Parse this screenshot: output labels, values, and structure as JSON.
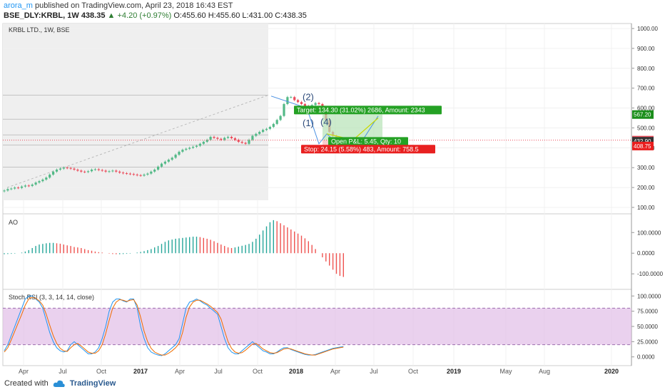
{
  "header": {
    "author": "arora_m",
    "published_text": "published on TradingView.com, April 23, 2018 16:43 EST",
    "symbol": "BSE_DLY:KRBL, 1W",
    "last": "438.35",
    "change": "▲ +4.20 (+0.97%)",
    "ohlc": "O:455.60 H:455.60 L:431.00 C:438.35"
  },
  "footer": {
    "created_with": "Created with",
    "brand": "TradingView"
  },
  "colors": {
    "up": "#53b987",
    "down": "#eb4d5c",
    "ao_up": "#26a69a",
    "ao_down": "#ef5350",
    "k": "#2196f3",
    "d": "#ef6c00",
    "band": "#e1bee7"
  },
  "chart_data": [
    {
      "type": "candlestick",
      "title": "KRBL LTD., 1W, BSE",
      "y_ticks": [
        "1000.00",
        "900.00",
        "800.00",
        "700.00",
        "600.00",
        "500.00",
        "400.00",
        "300.00",
        "200.00",
        "100.00"
      ],
      "ylim": [
        100,
        1000
      ],
      "x_tick_labels": [
        "Apr",
        "Jul",
        "Oct",
        "2017",
        "Apr",
        "Jul",
        "Oct",
        "2018",
        "Apr",
        "Jul",
        "Oct",
        "2019",
        "May",
        "Aug",
        "2020"
      ],
      "close_approx": [
        185,
        192,
        195,
        200,
        198,
        205,
        210,
        208,
        215,
        225,
        232,
        240,
        250,
        265,
        280,
        290,
        295,
        300,
        298,
        295,
        290,
        285,
        280,
        278,
        282,
        290,
        292,
        288,
        285,
        280,
        282,
        285,
        280,
        275,
        272,
        270,
        268,
        265,
        262,
        260,
        265,
        270,
        280,
        290,
        305,
        320,
        330,
        340,
        350,
        365,
        380,
        390,
        395,
        400,
        405,
        410,
        420,
        430,
        440,
        455,
        450,
        445,
        440,
        450,
        455,
        448,
        440,
        430,
        425,
        420,
        440,
        460,
        470,
        480,
        490,
        495,
        505,
        520,
        540,
        560,
        620,
        655,
        655,
        640,
        630,
        620,
        610,
        605,
        615,
        625,
        620,
        600,
        540,
        480,
        460,
        450,
        445,
        438
      ],
      "horizontal_levels": [
        {
          "value": 567.2,
          "label": "567.20",
          "color": "#1b8e1b"
        },
        {
          "value": 438.35,
          "label": "438.35",
          "color": "#eb4d5c"
        },
        {
          "value": 432.9,
          "label": "432.90",
          "color": "#333333"
        },
        {
          "value": 408.75,
          "label": "408.75",
          "color": "#e91e1e"
        }
      ],
      "annotations": {
        "wave_labels": [
          "(1)",
          "(2)",
          "(4)"
        ],
        "target": "Target: 134.30 (31.02%) 2686, Amount: 2343",
        "open": "Open P&L: 5.45, Qty: 10",
        "stop": "Stop: 24.15 (5.58%) 483, Amount: 758.5"
      }
    },
    {
      "type": "bar",
      "title": "AO",
      "y_ticks": [
        "100.0000",
        "0.0000",
        "-100.0000"
      ],
      "ylim": [
        -120,
        170
      ],
      "values_approx": [
        -5,
        -4,
        -3,
        -2,
        0,
        3,
        8,
        15,
        25,
        35,
        42,
        45,
        48,
        50,
        50,
        48,
        46,
        42,
        38,
        35,
        30,
        28,
        25,
        20,
        15,
        12,
        8,
        5,
        3,
        0,
        -2,
        -4,
        -5,
        -5,
        -4,
        -3,
        -2,
        0,
        3,
        6,
        10,
        15,
        20,
        28,
        35,
        45,
        55,
        62,
        66,
        70,
        72,
        74,
        76,
        78,
        80,
        80,
        78,
        74,
        70,
        65,
        58,
        50,
        42,
        35,
        28,
        25,
        28,
        32,
        36,
        40,
        45,
        55,
        70,
        90,
        110,
        130,
        150,
        160,
        155,
        145,
        135,
        125,
        115,
        105,
        95,
        85,
        72,
        58,
        40,
        20,
        0,
        -20,
        -40,
        -60,
        -80,
        -100,
        -110,
        -115
      ]
    },
    {
      "type": "line",
      "title": "Stoch RSI (3, 3, 14, 14, close)",
      "y_ticks": [
        "100.0000",
        "75.0000",
        "50.0000",
        "25.0000",
        "0.0000"
      ],
      "ylim": [
        -5,
        105
      ],
      "band": [
        20,
        80
      ],
      "series": [
        {
          "name": "K",
          "values_approx": [
            10,
            20,
            35,
            50,
            65,
            80,
            95,
            100,
            100,
            95,
            90,
            80,
            60,
            40,
            25,
            15,
            10,
            8,
            10,
            20,
            25,
            20,
            15,
            10,
            5,
            5,
            8,
            15,
            30,
            50,
            75,
            90,
            95,
            95,
            92,
            90,
            95,
            95,
            80,
            50,
            30,
            15,
            8,
            5,
            3,
            2,
            5,
            10,
            15,
            20,
            30,
            55,
            80,
            90,
            92,
            95,
            92,
            88,
            85,
            80,
            75,
            70,
            50,
            30,
            15,
            8,
            5,
            5,
            10,
            15,
            20,
            25,
            20,
            15,
            10,
            8,
            5,
            5,
            8,
            12,
            15,
            15,
            12,
            10,
            8,
            6,
            4,
            3,
            3,
            4,
            6,
            8,
            10,
            12,
            14,
            15,
            16,
            17
          ]
        },
        {
          "name": "D",
          "values_approx": [
            8,
            15,
            28,
            42,
            56,
            70,
            85,
            95,
            98,
            96,
            92,
            85,
            70,
            52,
            35,
            22,
            14,
            10,
            9,
            15,
            20,
            22,
            18,
            13,
            8,
            6,
            6,
            10,
            20,
            38,
            60,
            80,
            90,
            94,
            93,
            91,
            93,
            94,
            85,
            65,
            42,
            25,
            14,
            8,
            5,
            3,
            3,
            6,
            10,
            15,
            22,
            40,
            65,
            82,
            90,
            93,
            93,
            90,
            87,
            83,
            78,
            73,
            62,
            43,
            25,
            14,
            8,
            6,
            7,
            11,
            16,
            21,
            22,
            18,
            13,
            10,
            7,
            6,
            7,
            10,
            13,
            14,
            13,
            11,
            9,
            7,
            5,
            4,
            3,
            3,
            5,
            7,
            9,
            11,
            13,
            14,
            15,
            16
          ]
        }
      ]
    }
  ]
}
